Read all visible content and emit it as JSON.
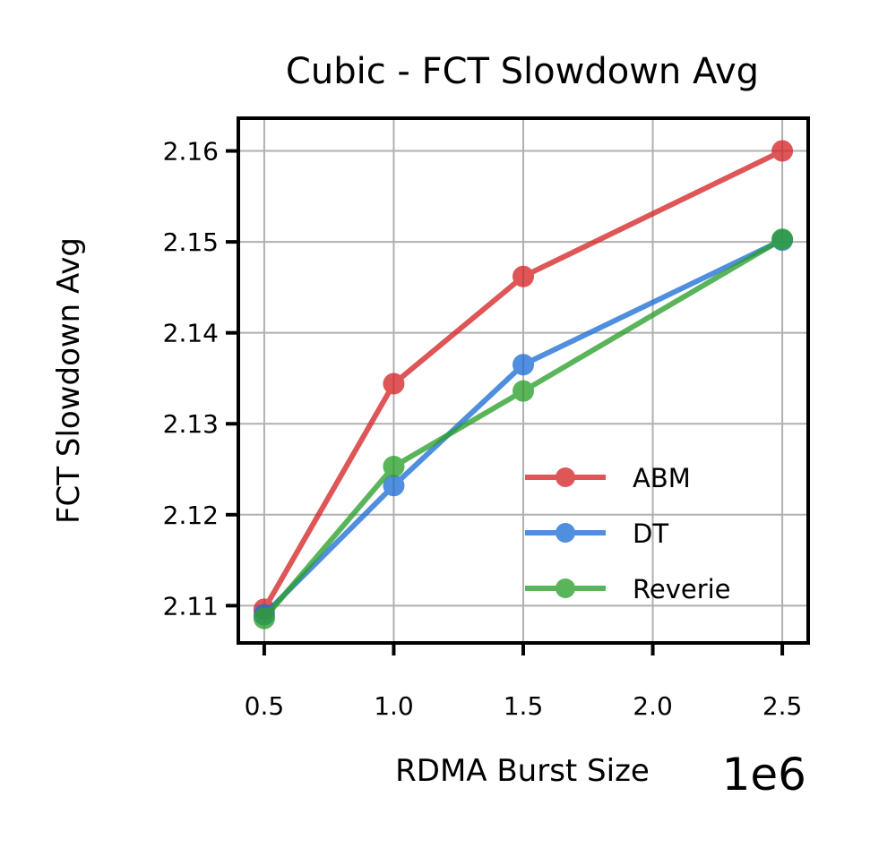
{
  "chart_data": {
    "type": "line",
    "title": "Cubic - FCT Slowdown Avg",
    "xlabel": "RDMA Burst Size",
    "ylabel": "FCT Slowdown Avg",
    "x_offset_label": "1e6",
    "x_scale": 1000000,
    "xlim": [
      0.4,
      2.6
    ],
    "ylim": [
      2.1059,
      2.1636
    ],
    "x_ticks": [
      0.5,
      1.0,
      1.5,
      2.0,
      2.5
    ],
    "x_tick_labels": [
      "0.5",
      "1.0",
      "1.5",
      "2.0",
      "2.5"
    ],
    "y_ticks": [
      2.11,
      2.12,
      2.13,
      2.14,
      2.15,
      2.16
    ],
    "y_tick_labels": [
      "2.11",
      "2.12",
      "2.13",
      "2.14",
      "2.15",
      "2.16"
    ],
    "grid": true,
    "legend_position": "lower-right",
    "series": [
      {
        "name": "ABM",
        "color": "#d62728",
        "x": [
          0.5,
          1.0,
          1.5,
          2.5
        ],
        "y": [
          2.1096,
          2.1344,
          2.1462,
          2.16
        ]
      },
      {
        "name": "DT",
        "color": "#1f6fd6",
        "x": [
          0.5,
          1.0,
          1.5,
          2.5
        ],
        "y": [
          2.109,
          2.1232,
          2.1365,
          2.1502
        ]
      },
      {
        "name": "Reverie",
        "color": "#2ca02c",
        "x": [
          0.5,
          1.0,
          1.5,
          2.5
        ],
        "y": [
          2.1086,
          2.1253,
          2.1336,
          2.1503
        ]
      }
    ]
  }
}
